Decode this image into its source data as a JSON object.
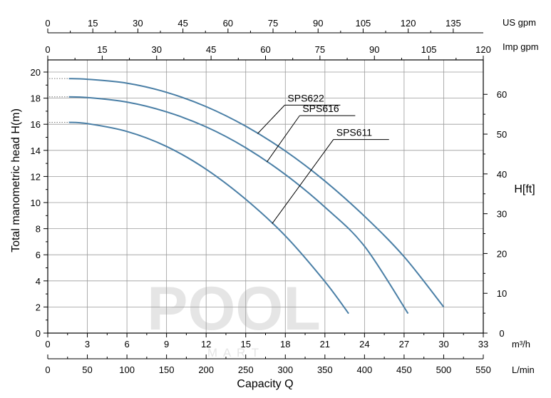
{
  "watermark": {
    "main": "POOL",
    "sub": "M A R T"
  },
  "chart_data": {
    "type": "line",
    "title": "",
    "grid": true,
    "x_axes": {
      "primary": {
        "label": "m³/h",
        "range": [
          0,
          33
        ],
        "ticks": [
          0,
          3,
          6,
          9,
          12,
          15,
          18,
          21,
          24,
          27,
          30,
          33
        ]
      },
      "lmin": {
        "label": "L/min",
        "range": [
          0,
          550
        ],
        "ticks": [
          0,
          50,
          100,
          150,
          200,
          250,
          300,
          350,
          400,
          450,
          500,
          550
        ]
      },
      "us_gpm": {
        "label": "US gpm",
        "range": [
          0,
          145
        ],
        "ticks": [
          0,
          15,
          30,
          45,
          60,
          75,
          90,
          105,
          120,
          135
        ]
      },
      "imp_gpm": {
        "label": "Imp gpm",
        "range": [
          0,
          120
        ],
        "ticks": [
          0,
          15,
          30,
          45,
          60,
          75,
          90,
          105,
          120
        ]
      }
    },
    "xlabel": "Capacity Q",
    "y_axes": {
      "left": {
        "label": "Total manometric head H(m)",
        "range": [
          0,
          20
        ],
        "ticks": [
          0,
          2,
          4,
          6,
          8,
          10,
          12,
          14,
          16,
          18,
          20
        ]
      },
      "right": {
        "label": "H[ft]",
        "range": [
          0,
          65.6
        ],
        "ticks": [
          0,
          10,
          20,
          30,
          40,
          50,
          60
        ]
      }
    },
    "series": [
      {
        "name": "SPS622",
        "color": "#4a7fa6",
        "points": [
          [
            1.6,
            19.5
          ],
          [
            3,
            19.45
          ],
          [
            6,
            19.15
          ],
          [
            9,
            18.45
          ],
          [
            12,
            17.35
          ],
          [
            15,
            15.85
          ],
          [
            18,
            13.95
          ],
          [
            21,
            11.65
          ],
          [
            24,
            8.95
          ],
          [
            27,
            5.85
          ],
          [
            30,
            2.0
          ]
        ]
      },
      {
        "name": "SPS616",
        "color": "#4a7fa6",
        "points": [
          [
            1.6,
            18.1
          ],
          [
            3,
            18.05
          ],
          [
            6,
            17.7
          ],
          [
            9,
            16.95
          ],
          [
            12,
            15.8
          ],
          [
            15,
            14.2
          ],
          [
            18,
            12.15
          ],
          [
            21,
            9.65
          ],
          [
            24,
            6.65
          ],
          [
            27.3,
            1.5
          ]
        ]
      },
      {
        "name": "SPS611",
        "color": "#4a7fa6",
        "points": [
          [
            1.6,
            16.15
          ],
          [
            3,
            16.05
          ],
          [
            6,
            15.45
          ],
          [
            9,
            14.3
          ],
          [
            12,
            12.55
          ],
          [
            15,
            10.25
          ],
          [
            18,
            7.45
          ],
          [
            21,
            3.95
          ],
          [
            22.8,
            1.5
          ]
        ]
      }
    ]
  }
}
